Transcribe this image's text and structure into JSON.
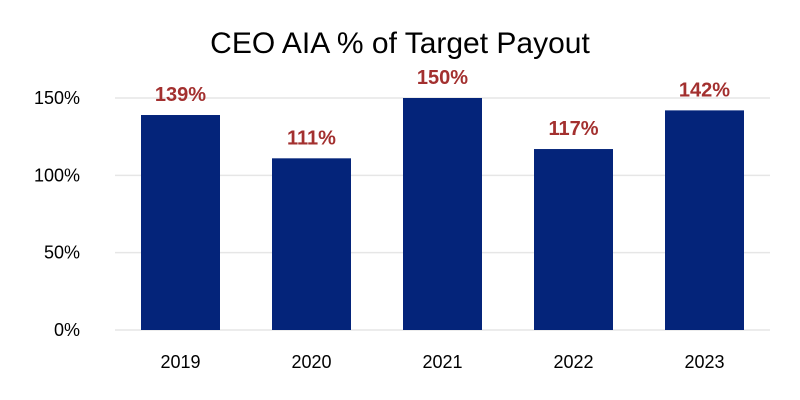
{
  "chart_data": {
    "type": "bar",
    "title": "CEO AIA % of Target Payout",
    "xlabel": "",
    "ylabel": "",
    "categories": [
      "2019",
      "2020",
      "2021",
      "2022",
      "2023"
    ],
    "values": [
      139,
      111,
      150,
      117,
      142
    ],
    "data_labels": [
      "139%",
      "111%",
      "150%",
      "117%",
      "142%"
    ],
    "ylim": [
      0,
      150
    ],
    "yticks": [
      0,
      50,
      100,
      150
    ],
    "ytick_labels": [
      "0%",
      "50%",
      "100%",
      "150%"
    ],
    "grid": true,
    "legend": "none",
    "colors": {
      "bar": "#04247a",
      "data_label": "#a3302f",
      "grid": "#e6e6e6"
    }
  }
}
